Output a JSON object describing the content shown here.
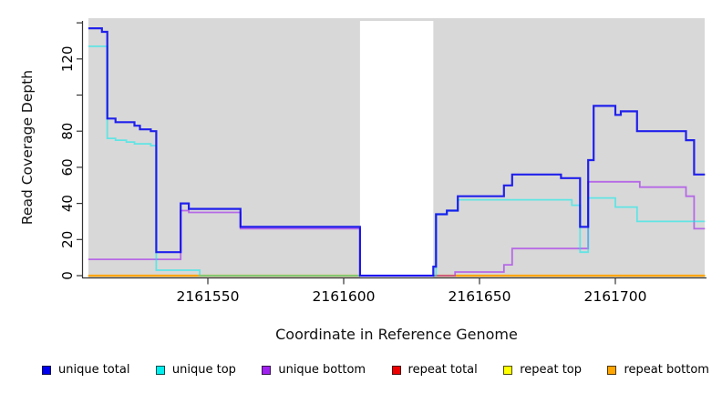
{
  "figure": {
    "background": "#FFFFFF",
    "plot_background": "#D8D8D8",
    "axis_color": "#333333",
    "tick_label_color": "#000000"
  },
  "chart_data": {
    "type": "line",
    "subtype": "step-after-coverage",
    "title": "",
    "xlabel": "Coordinate in Reference Genome",
    "ylabel": "Read Coverage Depth",
    "xlim": [
      2161506,
      2161733
    ],
    "ylim": [
      0,
      143
    ],
    "grid": false,
    "x_ticks": [
      2161550,
      2161600,
      2161650,
      2161700
    ],
    "x_tick_labels": [
      "2161550",
      "2161600",
      "2161650",
      "2161700"
    ],
    "y_ticks": [
      0,
      20,
      40,
      60,
      80,
      100,
      120,
      140
    ],
    "y_tick_labels": [
      "0",
      "20",
      "40",
      "60",
      "80",
      "",
      "120",
      ""
    ],
    "masked_region": {
      "x_start": 2161606,
      "x_end": 2161633,
      "fill": "#FFFFFF"
    },
    "series_note": "listed in draw order (first = bottom); values are read coverage depth; points are [coordinate, depth] step-after",
    "series": [
      {
        "name": "repeat total",
        "color": "#EE0000",
        "opacity": 1,
        "width": 1.6,
        "segments": [
          [
            [
              2161506,
              0
            ],
            [
              2161606,
              0
            ]
          ],
          [
            [
              2161633,
              0
            ],
            [
              2161733,
              0
            ]
          ]
        ]
      },
      {
        "name": "repeat top",
        "color": "#FFFF00",
        "opacity": 1,
        "width": 1.6,
        "segments": [
          [
            [
              2161506,
              0
            ],
            [
              2161606,
              0
            ]
          ],
          [
            [
              2161633,
              0
            ],
            [
              2161733,
              0
            ]
          ]
        ]
      },
      {
        "name": "repeat bottom",
        "color": "#FFA500",
        "opacity": 1,
        "width": 2.2,
        "segments": [
          [
            [
              2161506,
              0
            ],
            [
              2161606,
              0
            ]
          ],
          [
            [
              2161633,
              0
            ],
            [
              2161733,
              0
            ]
          ]
        ]
      },
      {
        "name": "unique bottom",
        "color": "#A020F0",
        "opacity": 0.6,
        "width": 1.8,
        "segments": [
          [
            [
              2161506,
              9
            ],
            [
              2161540,
              36
            ],
            [
              2161543,
              35
            ],
            [
              2161562,
              26
            ],
            [
              2161606,
              0
            ],
            [
              2161641,
              2
            ],
            [
              2161659,
              6
            ],
            [
              2161662,
              15
            ],
            [
              2161690,
              52
            ],
            [
              2161709,
              49
            ],
            [
              2161726,
              44
            ],
            [
              2161729,
              26
            ],
            [
              2161733,
              26
            ]
          ]
        ]
      },
      {
        "name": "unique top",
        "color": "#00EEEE",
        "opacity": 0.55,
        "width": 1.8,
        "segments": [
          [
            [
              2161506,
              127
            ],
            [
              2161513,
              76
            ],
            [
              2161516,
              75
            ],
            [
              2161520,
              74
            ],
            [
              2161523,
              73
            ],
            [
              2161529,
              72
            ],
            [
              2161531,
              3
            ],
            [
              2161547,
              0
            ],
            [
              2161606,
              0
            ]
          ],
          [
            [
              2161633,
              0
            ],
            [
              2161634,
              34
            ],
            [
              2161638,
              36
            ],
            [
              2161642,
              42
            ],
            [
              2161684,
              39
            ],
            [
              2161687,
              13
            ],
            [
              2161690,
              43
            ],
            [
              2161700,
              38
            ],
            [
              2161708,
              30
            ],
            [
              2161733,
              30
            ]
          ]
        ]
      },
      {
        "name": "unique total",
        "color": "#0000EE",
        "opacity": 0.85,
        "width": 2.2,
        "segments": [
          [
            [
              2161506,
              137
            ],
            [
              2161511,
              135
            ],
            [
              2161513,
              87
            ],
            [
              2161516,
              85
            ],
            [
              2161523,
              83
            ],
            [
              2161525,
              81
            ],
            [
              2161529,
              80
            ],
            [
              2161531,
              13
            ],
            [
              2161540,
              40
            ],
            [
              2161543,
              37
            ],
            [
              2161562,
              27
            ],
            [
              2161606,
              0
            ],
            [
              2161633,
              5
            ],
            [
              2161634,
              34
            ],
            [
              2161638,
              36
            ],
            [
              2161642,
              44
            ],
            [
              2161659,
              50
            ],
            [
              2161662,
              56
            ],
            [
              2161680,
              54
            ],
            [
              2161687,
              27
            ],
            [
              2161690,
              64
            ],
            [
              2161692,
              94
            ],
            [
              2161700,
              89
            ],
            [
              2161702,
              91
            ],
            [
              2161708,
              80
            ],
            [
              2161726,
              75
            ],
            [
              2161729,
              56
            ],
            [
              2161733,
              56
            ]
          ]
        ]
      }
    ],
    "legend": {
      "position": "bottom",
      "entries": [
        {
          "label": "unique total",
          "color": "#0000EE"
        },
        {
          "label": "unique top",
          "color": "#00EEEE"
        },
        {
          "label": "unique bottom",
          "color": "#A020F0"
        },
        {
          "label": "repeat total",
          "color": "#EE0000"
        },
        {
          "label": "repeat top",
          "color": "#FFFF00"
        },
        {
          "label": "repeat bottom",
          "color": "#FFA500"
        }
      ]
    }
  }
}
